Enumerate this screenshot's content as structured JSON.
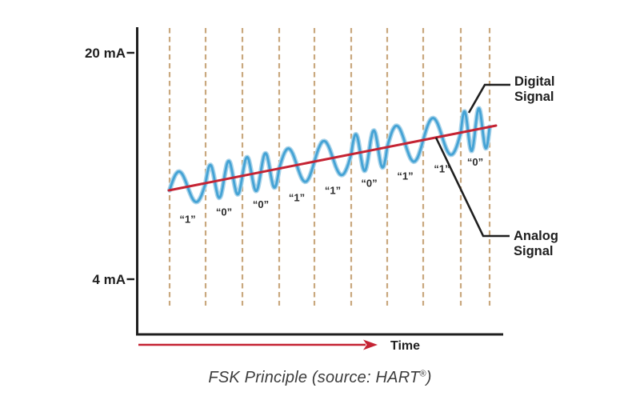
{
  "caption": {
    "prefix": "FSK Principle (source: HART",
    "registered_mark": "®",
    "suffix": ")"
  },
  "y_axis": {
    "top_label": "20 mA",
    "bottom_label": "4 mA"
  },
  "x_axis": {
    "label": "Time"
  },
  "callouts": {
    "digital": {
      "line1": "Digital",
      "line2": "Signal"
    },
    "analog": {
      "line1": "Analog",
      "line2": "Signal"
    }
  },
  "bit_labels": [
    "“1”",
    "“0”",
    "“0”",
    "“1”",
    "“1”",
    "“0”",
    "“1”",
    "“1”",
    "“0”"
  ],
  "colors": {
    "wave_blue": "#45A3D5",
    "wave_blue_halo": "#AAD4EA",
    "analog_red": "#C52333",
    "slot_dash_tan": "#C9A87E",
    "ink_black": "#1F1F1F",
    "caption_gray": "#3C3C3C"
  },
  "chart_data": {
    "type": "line",
    "description": "FSK principle: a sinusoidal digital signal (frequency-shift keyed) superimposed on a slowly rising analog 4-20 mA current signal; time slots marked by dashed dividers each carry one bit",
    "bit_sequence": [
      "1",
      "0",
      "0",
      "1",
      "1",
      "0",
      "1",
      "1",
      "0"
    ],
    "frequency_encoding": {
      "1": "low frequency, 1 cycle per bit slot",
      "0": "high frequency, 2 cycles per bit slot"
    },
    "y_axis_ticks": [
      "20 mA",
      "4 mA"
    ],
    "x_axis_label": "Time",
    "series": [
      {
        "name": "Digital Signal",
        "style": "blue sine wave around analog baseline"
      },
      {
        "name": "Analog Signal",
        "style": "red straight line rising with time"
      }
    ]
  }
}
